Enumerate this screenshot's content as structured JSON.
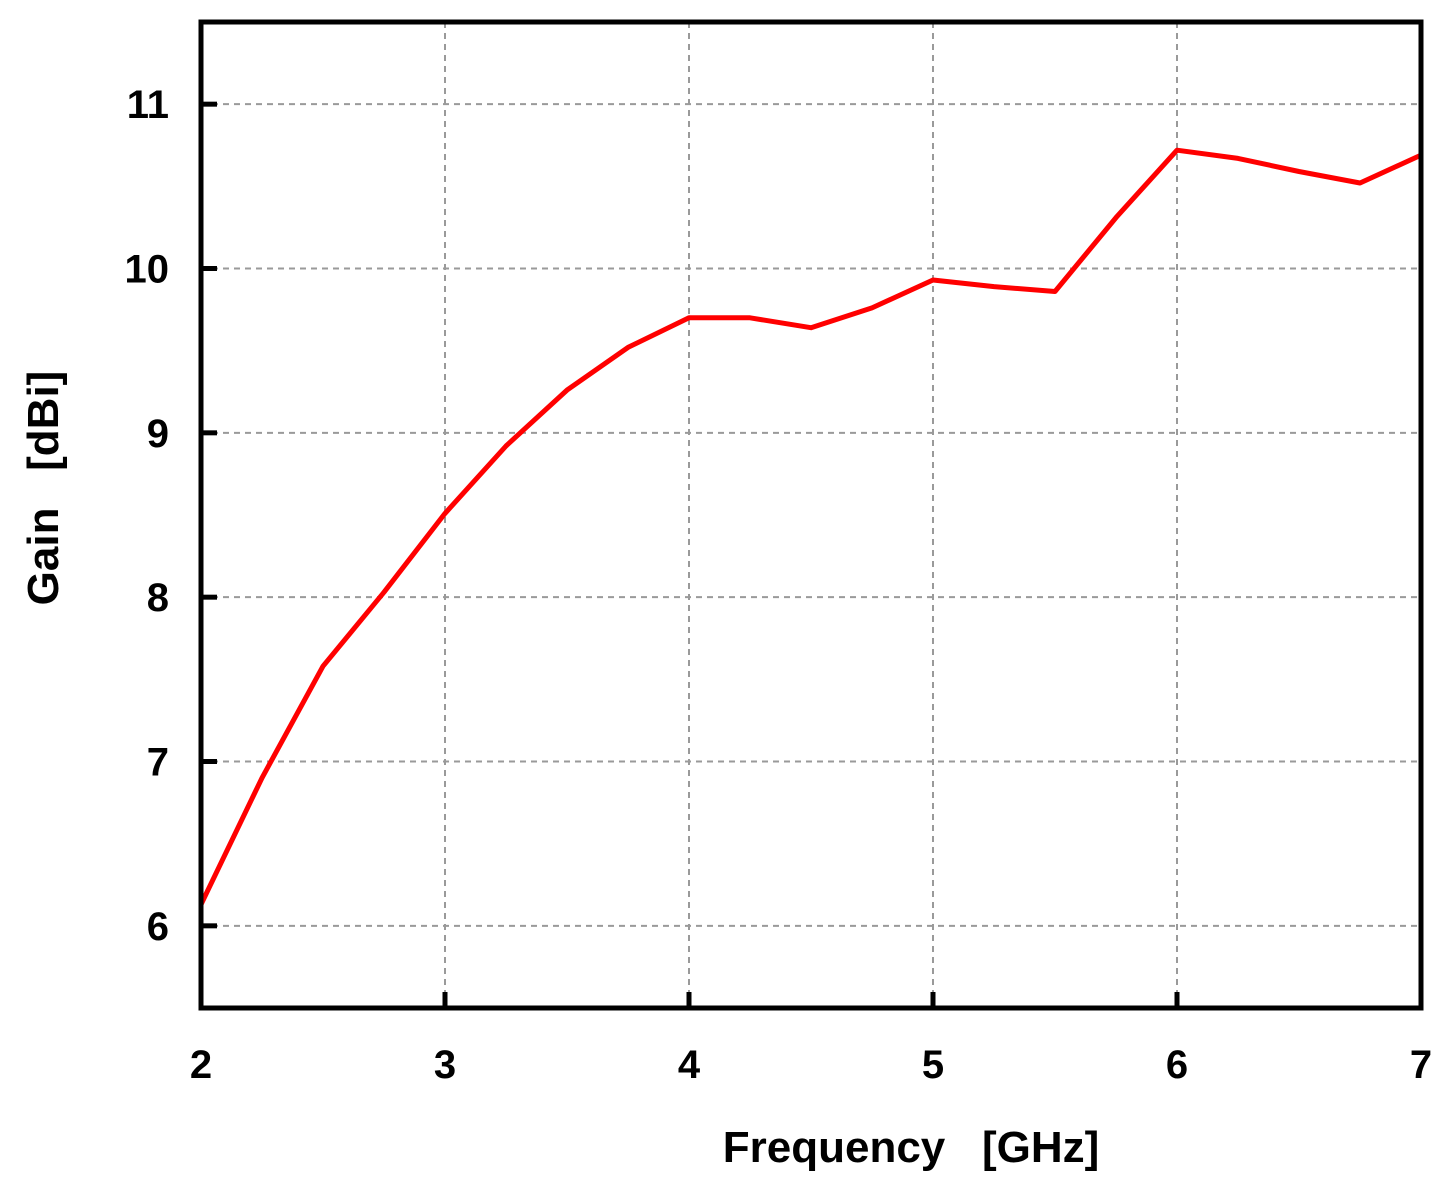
{
  "chart_data": {
    "type": "line",
    "title": "",
    "xlabel": "Frequency   [GHz]",
    "ylabel": "Gain   [dBi]",
    "xlim": [
      2,
      7
    ],
    "ylim": [
      5.5,
      11.5
    ],
    "x_ticks": [
      2,
      3,
      4,
      5,
      6,
      7
    ],
    "x_tick_labels": [
      "2",
      "3",
      "4",
      "5",
      "6",
      "7"
    ],
    "y_ticks": [
      6,
      7,
      8,
      9,
      10,
      11
    ],
    "y_tick_labels": [
      "6",
      "7",
      "8",
      "9",
      "10",
      "11"
    ],
    "grid": true,
    "series": [
      {
        "color": "#ff0000",
        "x": [
          2.0,
          2.25,
          2.5,
          2.75,
          3.0,
          3.25,
          3.5,
          3.75,
          4.0,
          4.25,
          4.5,
          4.75,
          5.0,
          5.25,
          5.5,
          5.75,
          6.0,
          6.25,
          6.5,
          6.75,
          7.0
        ],
        "y": [
          6.13,
          6.9,
          7.58,
          8.03,
          8.51,
          8.92,
          9.26,
          9.52,
          9.7,
          9.7,
          9.64,
          9.76,
          9.93,
          9.89,
          9.86,
          10.31,
          10.72,
          10.67,
          10.59,
          10.52,
          10.69
        ]
      }
    ]
  }
}
